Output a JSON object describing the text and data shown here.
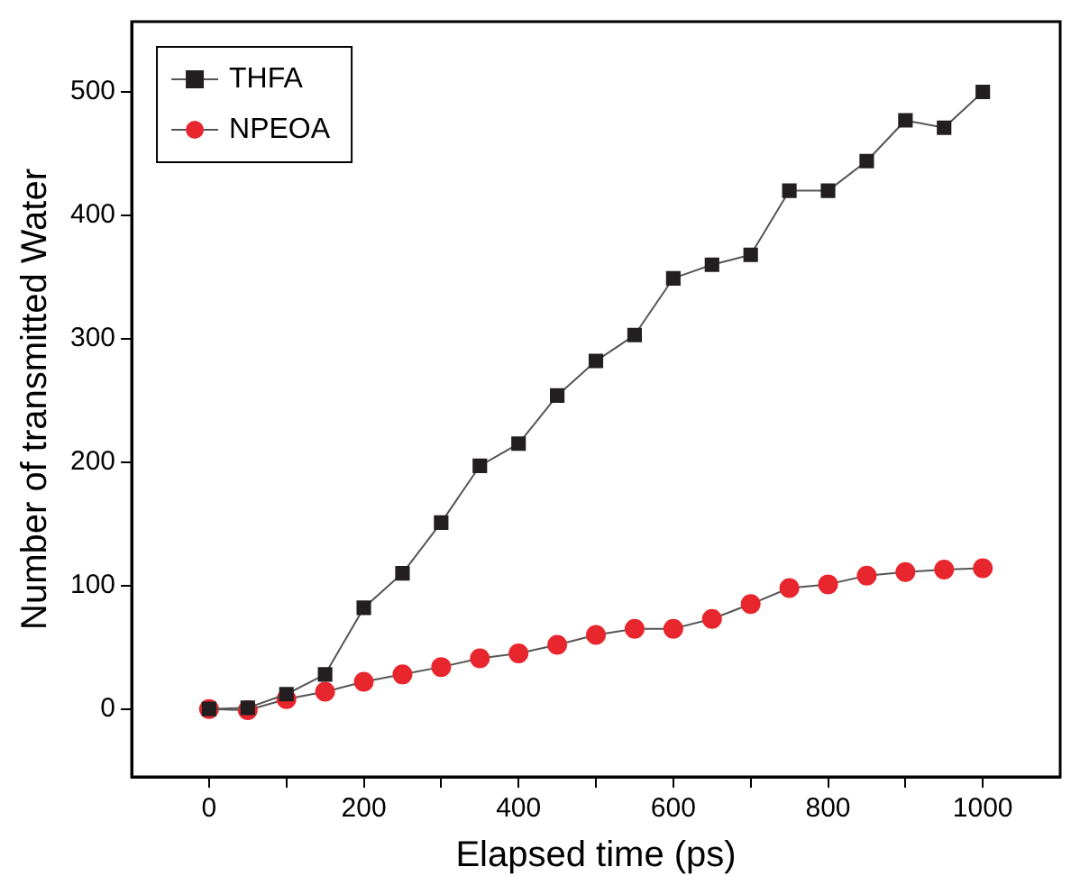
{
  "chart_data": {
    "type": "line",
    "xlabel": "Elapsed time (ps)",
    "ylabel": "Number of transmitted Water",
    "x": [
      0,
      50,
      100,
      150,
      200,
      250,
      300,
      350,
      400,
      450,
      500,
      550,
      600,
      650,
      700,
      750,
      800,
      850,
      900,
      950,
      1000
    ],
    "series": [
      {
        "name": "THFA",
        "color": "#231f20",
        "marker": "square",
        "values": [
          0,
          1,
          12,
          28,
          82,
          110,
          151,
          197,
          215,
          254,
          282,
          303,
          349,
          360,
          368,
          420,
          420,
          444,
          477,
          471,
          500
        ]
      },
      {
        "name": "NPEOA",
        "color": "#e8262d",
        "marker": "circle",
        "values": [
          0,
          -1,
          8,
          14,
          22,
          28,
          34,
          41,
          45,
          52,
          60,
          65,
          65,
          73,
          85,
          98,
          101,
          108,
          111,
          113,
          114
        ]
      }
    ],
    "xlim": [
      -100,
      1100
    ],
    "xticks": [
      0,
      {
        "value": 100,
        "label": null
      },
      200,
      {
        "value": 300,
        "label": null
      },
      400,
      {
        "value": 500,
        "label": null
      },
      600,
      {
        "value": 700,
        "label": null
      },
      800,
      {
        "value": 900,
        "label": null
      },
      1000
    ],
    "ylim": [
      -55,
      557
    ],
    "yticks": [
      0,
      100,
      200,
      300,
      400,
      500
    ],
    "grid": false,
    "legend": "top left",
    "line_style": "solid"
  }
}
